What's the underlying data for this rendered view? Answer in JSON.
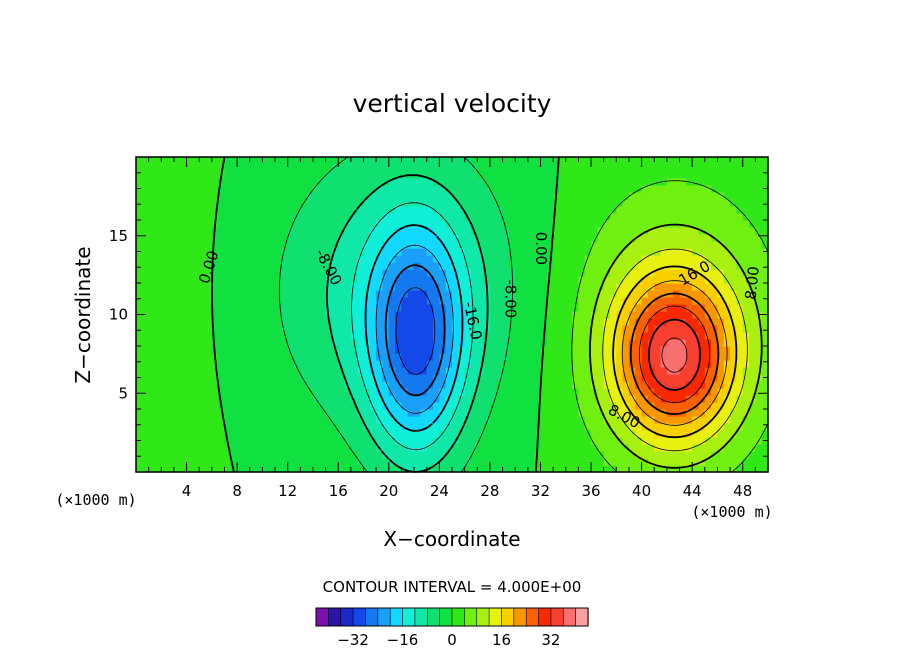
{
  "chart_data": {
    "type": "heatmap",
    "title": "vertical velocity",
    "xlabel": "X−coordinate",
    "ylabel": "Z−coordinate",
    "x_unit_left": "(×1000 m)",
    "x_unit_right": "(×1000 m)",
    "xlim": [
      0,
      50
    ],
    "ylim": [
      0,
      20
    ],
    "x_ticks": [
      4,
      8,
      12,
      16,
      20,
      24,
      28,
      32,
      36,
      40,
      44,
      48
    ],
    "y_ticks": [
      5,
      10,
      15
    ],
    "contour_interval_text": "CONTOUR INTERVAL = 4.000E+00",
    "contour_interval": 4,
    "colorbar": {
      "levels": [
        -36,
        -32,
        -28,
        -24,
        -20,
        -16,
        -12,
        -8,
        -4,
        0,
        4,
        8,
        12,
        16,
        20,
        24,
        28,
        32,
        36
      ],
      "colors": [
        "#7a10b0",
        "#2a14a8",
        "#1a28c8",
        "#1448e8",
        "#1478f0",
        "#1aa0f8",
        "#10d8ff",
        "#10f0d8",
        "#10e8a8",
        "#10e070",
        "#10e040",
        "#30e818",
        "#70f010",
        "#a8f010",
        "#e8f010",
        "#f8d000",
        "#f89800",
        "#f86000",
        "#f82800",
        "#f84030",
        "#f87070",
        "#f8a0a0"
      ],
      "tick_labels": [
        "−32",
        "−16",
        "0",
        "16",
        "32"
      ],
      "tick_values": [
        -32,
        -16,
        0,
        16,
        32
      ]
    },
    "contour_labels": [
      {
        "text": "0.00",
        "x": 5.8,
        "z": 13.0,
        "rotate": -72
      },
      {
        "text": "0.00",
        "x": 32.0,
        "z": 14.2,
        "rotate": 90
      },
      {
        "text": "-8.00",
        "x": 15.2,
        "z": 13.0,
        "rotate": 62
      },
      {
        "text": "-8.00",
        "x": 29.6,
        "z": 11.0,
        "rotate": 90
      },
      {
        "text": "-16.0",
        "x": 26.6,
        "z": 9.6,
        "rotate": 78
      },
      {
        "text": "8.00",
        "x": 48.8,
        "z": 12.0,
        "rotate": -84
      },
      {
        "text": "16.0",
        "x": 44.2,
        "z": 12.6,
        "rotate": -30
      },
      {
        "text": "8.00",
        "x": 38.6,
        "z": 3.5,
        "rotate": 28
      }
    ],
    "features": [
      {
        "name": "updraft",
        "x": 42.6,
        "z": 7.2,
        "peak": 28,
        "sx": 3.3,
        "sz": 3.6
      },
      {
        "name": "downdraft",
        "x": 22.2,
        "z": 8.2,
        "peak": -22,
        "sx": 2.6,
        "sz": 5.0
      }
    ]
  }
}
